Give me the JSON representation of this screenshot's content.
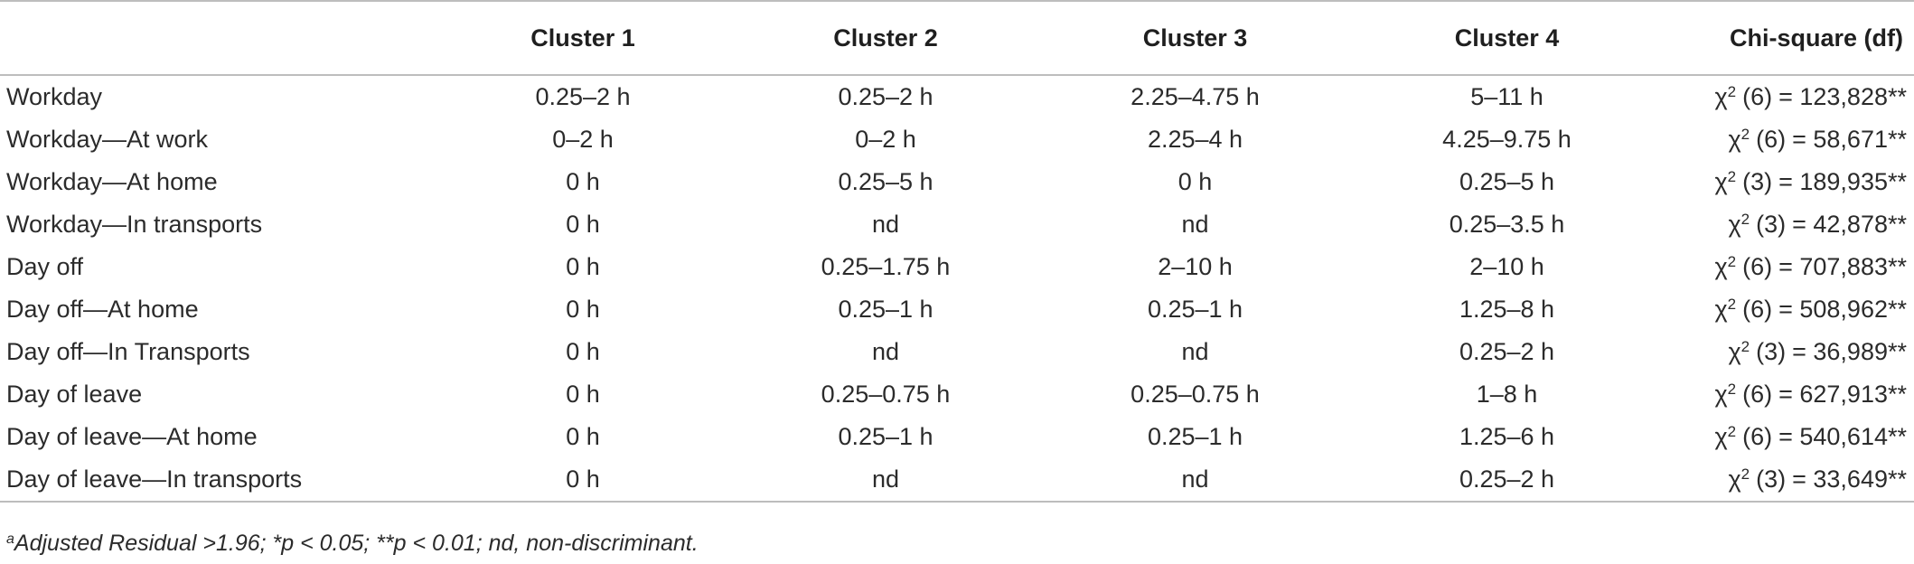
{
  "table": {
    "headers": [
      "",
      "Cluster 1",
      "Cluster 2",
      "Cluster 3",
      "Cluster 4",
      "Chi-square (df)"
    ],
    "chi_symbol": "χ",
    "chi_exponent": "2",
    "rows": [
      {
        "label": "Workday",
        "c1": "0.25–2 h",
        "c2": "0.25–2 h",
        "c3": "2.25–4.75 h",
        "c4": "5–11 h",
        "df": "(6)",
        "stat": "= 123,828**"
      },
      {
        "label": "Workday—At work",
        "c1": "0–2 h",
        "c2": "0–2 h",
        "c3": "2.25–4 h",
        "c4": "4.25–9.75 h",
        "df": "(6)",
        "stat": "= 58,671**"
      },
      {
        "label": "Workday—At home",
        "c1": "0 h",
        "c2": "0.25–5 h",
        "c3": "0 h",
        "c4": "0.25–5 h",
        "df": "(3)",
        "stat": "= 189,935**"
      },
      {
        "label": "Workday—In transports",
        "c1": "0 h",
        "c2": "nd",
        "c3": "nd",
        "c4": "0.25–3.5 h",
        "df": "(3)",
        "stat": "= 42,878**"
      },
      {
        "label": "Day off",
        "c1": "0 h",
        "c2": "0.25–1.75 h",
        "c3": "2–10 h",
        "c4": "2–10 h",
        "df": "(6)",
        "stat": "= 707,883**"
      },
      {
        "label": "Day off—At home",
        "c1": "0 h",
        "c2": "0.25–1 h",
        "c3": "0.25–1 h",
        "c4": "1.25–8 h",
        "df": "(6)",
        "stat": "= 508,962**"
      },
      {
        "label": "Day off—In Transports",
        "c1": "0 h",
        "c2": "nd",
        "c3": "nd",
        "c4": "0.25–2 h",
        "df": "(3)",
        "stat": "= 36,989**"
      },
      {
        "label": "Day of leave",
        "c1": "0 h",
        "c2": "0.25–0.75 h",
        "c3": "0.25–0.75 h",
        "c4": "1–8 h",
        "df": "(6)",
        "stat": "= 627,913**"
      },
      {
        "label": "Day of leave—At home",
        "c1": "0 h",
        "c2": "0.25–1 h",
        "c3": "0.25–1 h",
        "c4": "1.25–6 h",
        "df": "(6)",
        "stat": "= 540,614**"
      },
      {
        "label": "Day of leave—In transports",
        "c1": "0 h",
        "c2": "nd",
        "c3": "nd",
        "c4": "0.25–2 h",
        "df": "(3)",
        "stat": "= 33,649**"
      }
    ]
  },
  "footnote": {
    "marker": "a",
    "text": "Adjusted Residual >1.96; *p < 0.05; **p < 0.01; nd, non-discriminant."
  }
}
